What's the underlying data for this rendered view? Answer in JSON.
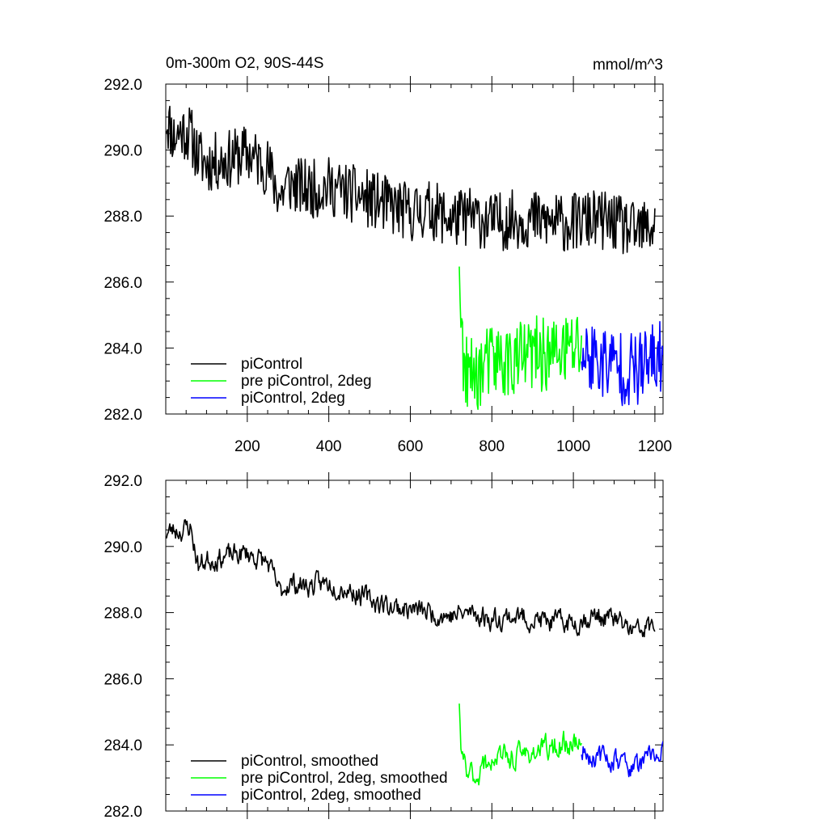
{
  "header": {
    "title": "0m-300m O2, 90S-44S",
    "units": "mmol/m^3"
  },
  "colors": {
    "piControl": "#000000",
    "pre_piControl_2deg": "#00ff00",
    "piControl_2deg": "#0000ff"
  },
  "chart_data": [
    {
      "type": "line",
      "title": "0m-300m O2, 90S-44S",
      "units": "mmol/m^3",
      "xlim": [
        0,
        1220
      ],
      "ylim": [
        282,
        292
      ],
      "x_tick_labels": [
        "200",
        "400",
        "600",
        "800",
        "1000",
        "1200"
      ],
      "y_tick_labels": [
        "282.0",
        "284.0",
        "286.0",
        "288.0",
        "290.0",
        "292.0"
      ],
      "legend_position": "bottom-left",
      "legend": [
        "piControl",
        "pre piControl, 2deg",
        "piControl, 2deg"
      ],
      "series": [
        {
          "name": "piControl",
          "color": "#000000",
          "x": [
            0,
            20,
            40,
            60,
            80,
            100,
            150,
            200,
            250,
            280,
            300,
            350,
            400,
            450,
            500,
            550,
            600,
            650,
            700,
            750,
            800,
            850,
            900,
            950,
            1000,
            1050,
            1100,
            1150,
            1200
          ],
          "y": [
            291.0,
            290.4,
            290.6,
            290.5,
            289.8,
            289.6,
            289.7,
            289.9,
            289.5,
            288.6,
            289.0,
            288.8,
            288.9,
            288.7,
            288.5,
            288.3,
            288.1,
            288.2,
            287.9,
            288.0,
            287.8,
            287.9,
            287.9,
            287.8,
            287.8,
            287.9,
            287.8,
            287.5,
            287.7
          ]
        },
        {
          "name": "pre piControl, 2deg",
          "color": "#00ff00",
          "x": [
            720,
            725,
            730,
            740,
            760,
            780,
            800,
            850,
            900,
            950,
            1000,
            1020
          ],
          "y": [
            286.8,
            284.8,
            283.4,
            283.1,
            283.2,
            283.4,
            283.6,
            283.6,
            283.8,
            283.8,
            284.0,
            284.1
          ]
        },
        {
          "name": "piControl, 2deg",
          "color": "#0000ff",
          "x": [
            1020,
            1050,
            1100,
            1150,
            1200,
            1220
          ],
          "y": [
            283.8,
            283.7,
            283.5,
            283.3,
            283.6,
            283.8
          ]
        }
      ],
      "noise_amplitude": [
        1.0,
        1.3,
        1.3
      ]
    },
    {
      "type": "line",
      "xlim": [
        0,
        1220
      ],
      "ylim": [
        282,
        292
      ],
      "y_tick_labels": [
        "282.0",
        "284.0",
        "286.0",
        "288.0",
        "290.0",
        "292.0"
      ],
      "legend_position": "bottom-left",
      "legend": [
        "piControl, smoothed",
        "pre piControl, 2deg, smoothed",
        "piControl, 2deg, smoothed"
      ],
      "series": [
        {
          "name": "piControl, smoothed",
          "color": "#000000",
          "x": [
            0,
            20,
            40,
            60,
            80,
            100,
            150,
            200,
            250,
            280,
            300,
            350,
            400,
            450,
            500,
            550,
            600,
            650,
            700,
            750,
            800,
            850,
            900,
            950,
            1000,
            1050,
            1100,
            1150,
            1200
          ],
          "y": [
            290.4,
            290.5,
            290.5,
            290.6,
            289.4,
            289.6,
            289.7,
            289.8,
            289.5,
            288.6,
            288.9,
            288.8,
            288.9,
            288.7,
            288.4,
            288.2,
            288.1,
            288.0,
            287.9,
            288.0,
            287.8,
            287.9,
            287.8,
            287.7,
            287.7,
            287.9,
            287.8,
            287.4,
            287.6
          ]
        },
        {
          "name": "pre piControl, 2deg, smoothed",
          "color": "#00ff00",
          "x": [
            720,
            725,
            730,
            760,
            800,
            850,
            900,
            950,
            1000,
            1020
          ],
          "y": [
            285.0,
            283.8,
            283.3,
            283.1,
            283.6,
            283.6,
            283.8,
            283.9,
            284.1,
            284.0
          ],
          "noise": 0.55
        },
        {
          "name": "piControl, 2deg, smoothed",
          "color": "#0000ff",
          "x": [
            1020,
            1050,
            1100,
            1150,
            1200,
            1220
          ],
          "y": [
            283.9,
            283.6,
            283.6,
            283.3,
            283.7,
            283.8
          ]
        }
      ],
      "noise_amplitude": [
        0.55,
        0.6,
        0.55
      ]
    }
  ]
}
